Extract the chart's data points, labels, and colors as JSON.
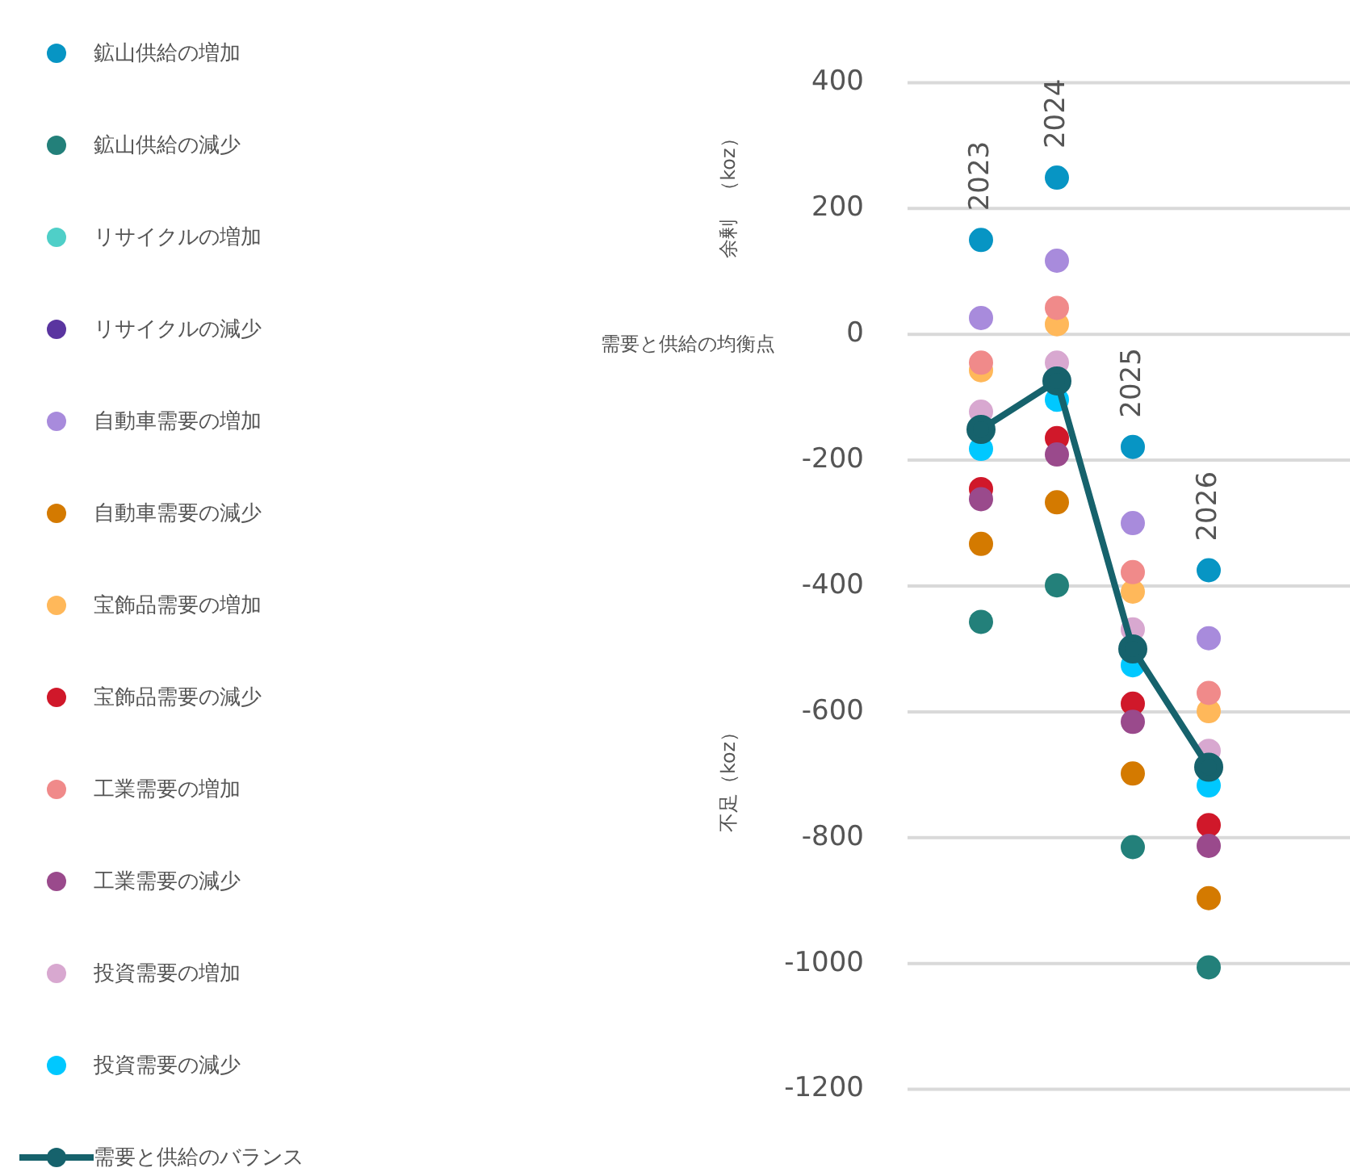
{
  "chart_data": {
    "type": "scatter",
    "categories": [
      "2023",
      "2024",
      "2025",
      "2026"
    ],
    "ylim": [
      -1200,
      400
    ],
    "yticks": [
      -1200,
      -1000,
      -800,
      -600,
      -400,
      -200,
      0,
      200,
      400
    ],
    "grid": "y",
    "legend": "left",
    "marker": "circle",
    "tick_labels": "y",
    "annotations": [
      "余剰　（koz）",
      "不足（koz）",
      "需要と供給の均衡点"
    ],
    "series": [
      {
        "name": "鉱山供給の増加",
        "color": "#0795c4",
        "values": [
          150,
          249,
          -179,
          -375
        ]
      },
      {
        "name": "鉱山供給の減少",
        "color": "#23807a",
        "values": [
          -457,
          -399,
          -815,
          -1006
        ]
      },
      {
        "name": "リサイクルの増加",
        "color": "#4fcfc8",
        "values": [
          null,
          null,
          null,
          null
        ]
      },
      {
        "name": "リサイクルの減少",
        "color": "#5a35a0",
        "values": [
          null,
          null,
          null,
          null
        ]
      },
      {
        "name": "自動車需要の増加",
        "color": "#a88bdc",
        "values": [
          26,
          117,
          -300,
          -483
        ]
      },
      {
        "name": "自動車需要の減少",
        "color": "#d47a00",
        "values": [
          -333,
          -267,
          -698,
          -896
        ]
      },
      {
        "name": "宝飾品需要の増加",
        "color": "#ffb85a",
        "values": [
          -57,
          16,
          -409,
          -599
        ]
      },
      {
        "name": "宝飾品需要の減少",
        "color": "#d0182a",
        "values": [
          -246,
          -165,
          -587,
          -780
        ]
      },
      {
        "name": "工業需要の増加",
        "color": "#f08a8a",
        "values": [
          -45,
          42,
          -378,
          -570
        ]
      },
      {
        "name": "工業需要の減少",
        "color": "#9a4a8c",
        "values": [
          -262,
          -191,
          -616,
          -813
        ]
      },
      {
        "name": "投資需要の増加",
        "color": "#d8a8d0",
        "values": [
          -123,
          -45,
          -469,
          -662
        ]
      },
      {
        "name": "投資需要の減少",
        "color": "#00c8ff",
        "values": [
          -182,
          -104,
          -526,
          -717
        ]
      },
      {
        "name": "需要と供給のバランス",
        "type": "line",
        "color": "#16626c",
        "values": [
          -151,
          -74,
          -500,
          -688
        ]
      }
    ]
  }
}
